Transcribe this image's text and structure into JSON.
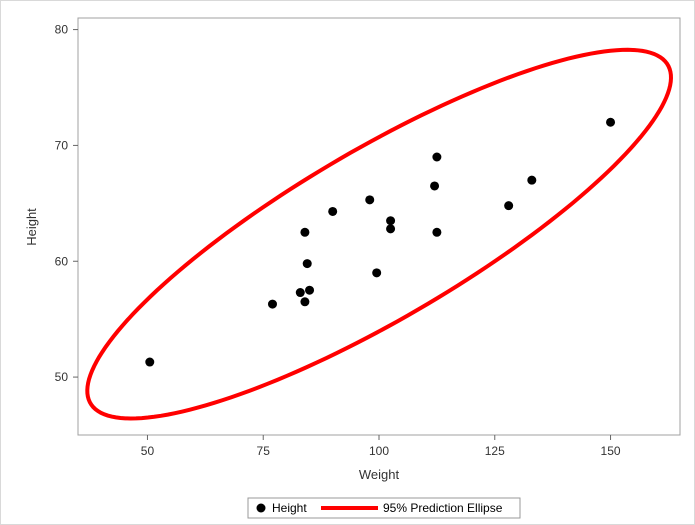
{
  "chart_data": {
    "type": "scatter",
    "title": "",
    "xlabel": "Weight",
    "ylabel": "Height",
    "xlim": [
      35,
      165
    ],
    "ylim": [
      45,
      81
    ],
    "xticks": [
      50,
      75,
      100,
      125,
      150
    ],
    "yticks": [
      50,
      60,
      70,
      80
    ],
    "grid": false,
    "legend_position": "bottom-center",
    "series": [
      {
        "name": "Height",
        "kind": "points",
        "color": "#000000",
        "x": [
          50.5,
          77,
          83,
          84,
          84,
          84.5,
          85,
          90,
          98,
          99.5,
          102.5,
          102.5,
          112,
          112.5,
          112.5,
          128,
          133,
          150
        ],
        "y": [
          51.3,
          56.3,
          57.3,
          56.5,
          62.5,
          59.8,
          57.5,
          64.3,
          65.3,
          59.0,
          63.5,
          62.8,
          66.5,
          62.5,
          69.0,
          64.8,
          67.0,
          72.0
        ]
      },
      {
        "name": "95% Prediction Ellipse",
        "kind": "ellipse",
        "color": "#ff0000",
        "center": [
          100.03,
          62.34
        ],
        "major_axis_endpoints": [
          [
            37,
            48.6
          ],
          [
            163,
            76.1
          ]
        ],
        "minor_semi_axis": 8.2
      }
    ]
  }
}
